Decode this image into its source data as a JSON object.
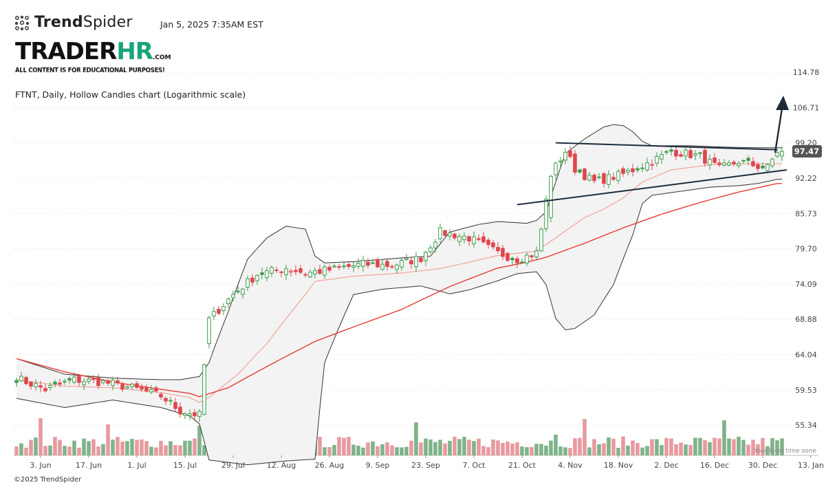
{
  "header": {
    "brand_prefix": "Trend",
    "brand_suffix": "Spider",
    "timestamp": "Jan 5, 2025 7:35AM EST",
    "logo_main": "TRADER",
    "logo_hr": "HR",
    "logo_com": ".COM",
    "disclaimer": "ALL CONTENT IS FOR EDUCATIONAL PURPOSES!",
    "chart_description": "FTNT, Daily, Hollow Candles chart (Logarithmic scale)"
  },
  "footer": {
    "copyright": "©2025 TrendSpider",
    "timezone_note": "Your local time zone"
  },
  "colors": {
    "up": "#3d9a4a",
    "down": "#e0454d",
    "volume_up": "#7fb38a",
    "volume_down": "#e89aa0",
    "band_fill": "#f3f3f3",
    "band_line": "#333333",
    "ma_slow": "#e63b32",
    "ma_fast": "#f2a39a",
    "trendline": "#1c2b3a",
    "price_tag": "#555555"
  },
  "chart_data": {
    "type": "candlestick",
    "scale": "log",
    "ylim": [
      52,
      125
    ],
    "y_ticks": [
      "114.78",
      "106.71",
      "99.20",
      "92.22",
      "85.73",
      "79.70",
      "74.09",
      "68.88",
      "64.04",
      "59.53",
      "55.34"
    ],
    "x_ticks": [
      "3. Jun",
      "17. Jun",
      "1. Jul",
      "15. Jul",
      "29. Jul",
      "12. Aug",
      "26. Aug",
      "9. Sep",
      "23. Sep",
      "7. Oct",
      "21. Oct",
      "4. Nov",
      "18. Nov",
      "2. Dec",
      "16. Dec",
      "30. Dec",
      "13. Jan"
    ],
    "last_price": "97.47",
    "close_anchors": [
      [
        0,
        61.0
      ],
      [
        6,
        59.6
      ],
      [
        12,
        60.8
      ],
      [
        18,
        60.5
      ],
      [
        24,
        59.8
      ],
      [
        30,
        58.8
      ],
      [
        34,
        57.0
      ],
      [
        38,
        56.5
      ],
      [
        40,
        68.8
      ],
      [
        45,
        72.5
      ],
      [
        50,
        75.6
      ],
      [
        56,
        76.6
      ],
      [
        60,
        75.8
      ],
      [
        66,
        76.4
      ],
      [
        72,
        77.2
      ],
      [
        78,
        77.0
      ],
      [
        84,
        78.2
      ],
      [
        88,
        82.5
      ],
      [
        94,
        81.5
      ],
      [
        100,
        79.0
      ],
      [
        104,
        78.0
      ],
      [
        108,
        79.0
      ],
      [
        109,
        83.0
      ],
      [
        111,
        93.0
      ],
      [
        114,
        97.5
      ],
      [
        116,
        94.0
      ],
      [
        120,
        91.5
      ],
      [
        126,
        93.0
      ],
      [
        132,
        95.5
      ],
      [
        136,
        97.5
      ],
      [
        142,
        96.5
      ],
      [
        146,
        94.0
      ],
      [
        150,
        95.5
      ],
      [
        154,
        94.5
      ],
      [
        156,
        94.2
      ],
      [
        158,
        97.47
      ]
    ],
    "bollinger_upper_anchors": [
      [
        0,
        63.5
      ],
      [
        10,
        61.5
      ],
      [
        20,
        61.0
      ],
      [
        30,
        60.8
      ],
      [
        34,
        60.8
      ],
      [
        38,
        61.2
      ],
      [
        40,
        63.0
      ],
      [
        44,
        70.0
      ],
      [
        48,
        78.0
      ],
      [
        52,
        81.5
      ],
      [
        56,
        83.5
      ],
      [
        60,
        83.0
      ],
      [
        62,
        78.5
      ],
      [
        64,
        77.4
      ],
      [
        70,
        77.6
      ],
      [
        80,
        78.2
      ],
      [
        86,
        78.5
      ],
      [
        90,
        82.5
      ],
      [
        96,
        83.8
      ],
      [
        100,
        84.3
      ],
      [
        106,
        84.0
      ],
      [
        108,
        84.5
      ],
      [
        110,
        86.0
      ],
      [
        114,
        97.0
      ],
      [
        118,
        100.0
      ],
      [
        122,
        102.5
      ],
      [
        124,
        103.0
      ],
      [
        126,
        102.8
      ],
      [
        128,
        101.5
      ],
      [
        130,
        99.5
      ],
      [
        132,
        98.6
      ],
      [
        140,
        98.6
      ],
      [
        148,
        98.3
      ],
      [
        154,
        98.2
      ],
      [
        158,
        98.2
      ]
    ],
    "bollinger_lower_anchors": [
      [
        0,
        58.5
      ],
      [
        10,
        57.4
      ],
      [
        20,
        58.3
      ],
      [
        30,
        57.4
      ],
      [
        36,
        56.4
      ],
      [
        38,
        55.5
      ],
      [
        40,
        51.5
      ],
      [
        48,
        51.0
      ],
      [
        56,
        51.4
      ],
      [
        62,
        51.6
      ],
      [
        64,
        63.0
      ],
      [
        70,
        72.5
      ],
      [
        76,
        73.3
      ],
      [
        84,
        73.8
      ],
      [
        90,
        72.6
      ],
      [
        94,
        73.2
      ],
      [
        100,
        74.6
      ],
      [
        104,
        75.7
      ],
      [
        108,
        76.0
      ],
      [
        110,
        74.0
      ],
      [
        112,
        69.0
      ],
      [
        114,
        67.4
      ],
      [
        116,
        67.6
      ],
      [
        120,
        69.5
      ],
      [
        124,
        74.0
      ],
      [
        128,
        82.0
      ],
      [
        130,
        87.5
      ],
      [
        132,
        89.0
      ],
      [
        136,
        89.5
      ],
      [
        144,
        90.5
      ],
      [
        150,
        90.8
      ],
      [
        154,
        91.2
      ],
      [
        158,
        92.0
      ]
    ],
    "ma_fast_anchors": [
      [
        0,
        60.8
      ],
      [
        10,
        60.0
      ],
      [
        20,
        59.8
      ],
      [
        30,
        59.2
      ],
      [
        36,
        58.6
      ],
      [
        38,
        58.0
      ],
      [
        40,
        58.6
      ],
      [
        46,
        61.5
      ],
      [
        52,
        65.5
      ],
      [
        56,
        69.0
      ],
      [
        60,
        72.5
      ],
      [
        62,
        74.5
      ],
      [
        70,
        75.3
      ],
      [
        80,
        75.8
      ],
      [
        88,
        76.5
      ],
      [
        94,
        77.5
      ],
      [
        100,
        78.6
      ],
      [
        108,
        79.3
      ],
      [
        112,
        81.5
      ],
      [
        118,
        85.0
      ],
      [
        122,
        86.5
      ],
      [
        126,
        88.5
      ],
      [
        130,
        91.5
      ],
      [
        136,
        93.8
      ],
      [
        144,
        94.8
      ],
      [
        152,
        95.0
      ],
      [
        158,
        95.0
      ]
    ],
    "ma_slow_anchors": [
      [
        0,
        63.5
      ],
      [
        10,
        61.8
      ],
      [
        20,
        60.5
      ],
      [
        30,
        59.6
      ],
      [
        36,
        59.1
      ],
      [
        38,
        58.7
      ],
      [
        44,
        59.8
      ],
      [
        50,
        61.8
      ],
      [
        56,
        63.8
      ],
      [
        62,
        65.8
      ],
      [
        70,
        67.8
      ],
      [
        80,
        70.3
      ],
      [
        90,
        73.7
      ],
      [
        100,
        76.6
      ],
      [
        106,
        77.5
      ],
      [
        110,
        78.3
      ],
      [
        118,
        80.6
      ],
      [
        126,
        83.2
      ],
      [
        134,
        85.6
      ],
      [
        142,
        87.7
      ],
      [
        150,
        89.6
      ],
      [
        158,
        91.2
      ]
    ],
    "volume_profile": "relative volume per bar, 0-1",
    "trendlines": [
      {
        "name": "resistance",
        "from": [
          112,
          99.2
        ],
        "to": [
          158,
          97.8
        ]
      },
      {
        "name": "support",
        "from": [
          104,
          87.3
        ],
        "to": [
          160,
          93.8
        ]
      }
    ],
    "annotation": "breakout arrow"
  }
}
